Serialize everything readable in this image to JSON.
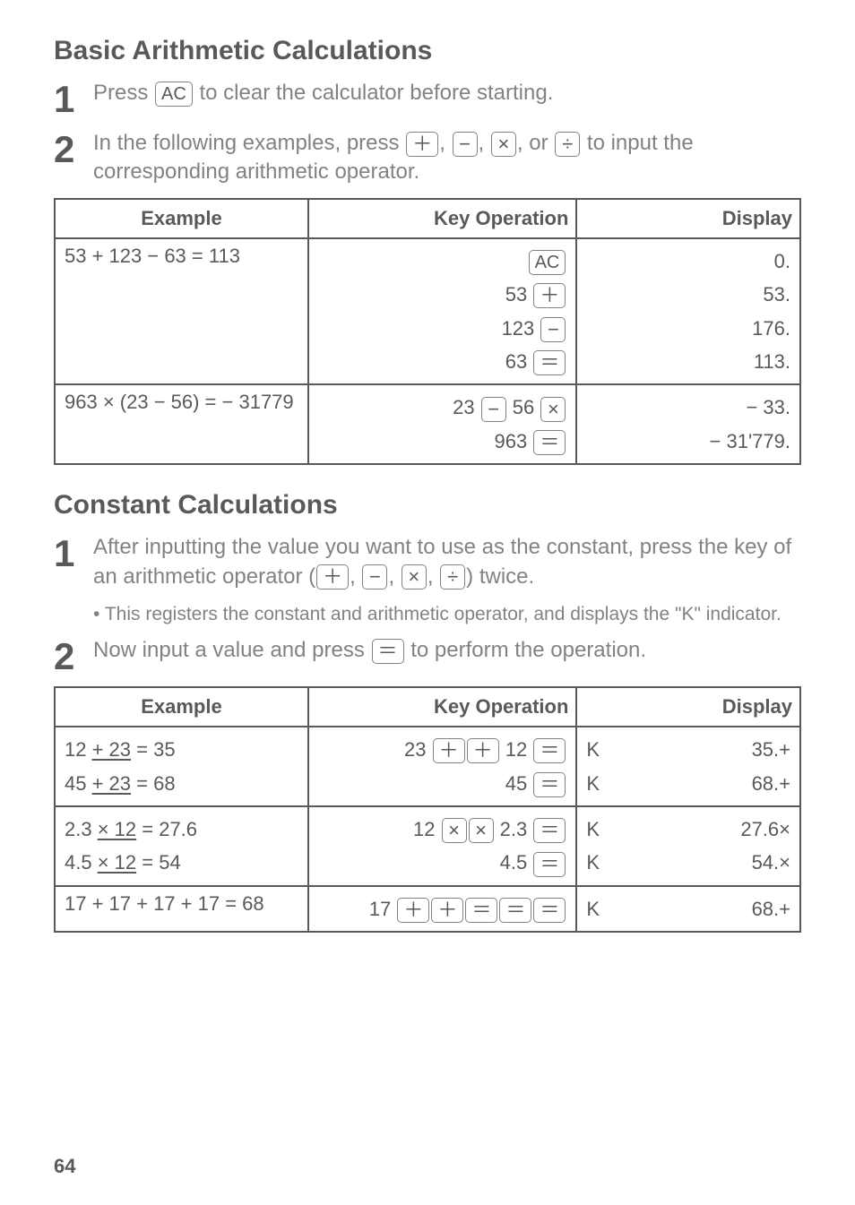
{
  "section1": {
    "title": "Basic Arithmetic Calculations",
    "step1_pre": "Press ",
    "step1_key": "AC",
    "step1_post": " to clear the calculator before starting.",
    "step2_pre": "In the following examples, press  ",
    "step2_mid": ", or ",
    "step2_post": " to input the corresponding arithmetic operator."
  },
  "table1": {
    "headers": [
      "Example",
      "Key Operation",
      "Display"
    ],
    "row1": {
      "example": "53 + 123 − 63 = 113",
      "ops": [
        {
          "pre": "",
          "key": "AC"
        },
        {
          "pre": "53 ",
          "key": "＋"
        },
        {
          "pre": "123 ",
          "key": "−"
        },
        {
          "pre": "63 ",
          "key": "＝"
        }
      ],
      "displays": [
        "0.",
        "53.",
        "176.",
        "113."
      ]
    },
    "row2": {
      "example": "963 × (23 − 56) = − 31779",
      "ops": [
        {
          "pre": "23 ",
          "key": "−",
          "mid": " 56 ",
          "key2": "×"
        },
        {
          "pre": "963 ",
          "key": "＝"
        }
      ],
      "displays": [
        "− 33.",
        "− 31'779."
      ]
    }
  },
  "section2": {
    "title": "Constant Calculations",
    "step1_pre": "After inputting the value you want to use as the constant, press the key of an arithmetic operator (",
    "step1_post": ") twice.",
    "bullet": "This registers the constant and arithmetic operator, and displays the \"K\" indicator.",
    "step2_pre": "Now input a value and press ",
    "step2_post": " to perform the operation."
  },
  "table2": {
    "headers": [
      "Example",
      "Key Operation",
      "Display"
    ],
    "r1a_ex_pre": "12 ",
    "r1a_ex_u": "+ 23",
    "r1a_ex_post": " = 35",
    "r1b_ex_pre": "45 ",
    "r1b_ex_u": "+ 23",
    "r1b_ex_post": " = 68",
    "r1_op1_pre": "23 ",
    "r1_op1_mid": " 12 ",
    "r1_op2_pre": "45 ",
    "r1_disp1_k": "K",
    "r1_disp1_v": "35.+",
    "r1_disp2_k": "K",
    "r1_disp2_v": "68.+",
    "r2a_ex_pre": "2.3 ",
    "r2a_ex_u": "× 12",
    "r2a_ex_post": " = 27.6",
    "r2b_ex_pre": "4.5 ",
    "r2b_ex_u": "× 12",
    "r2b_ex_post": " = 54",
    "r2_op1_pre": "12 ",
    "r2_op1_mid": " 2.3 ",
    "r2_op2_pre": "4.5 ",
    "r2_disp1_k": "K",
    "r2_disp1_v": "27.6×",
    "r2_disp2_k": "K",
    "r2_disp2_v": "54.×",
    "r3_ex": "17 + 17 + 17 + 17 = 68",
    "r3_op_pre": "17 ",
    "r3_disp_k": "K",
    "r3_disp_v": "68.+"
  },
  "keys": {
    "plus": "＋",
    "minus": "−",
    "mult": "×",
    "div": "÷",
    "eq": "＝",
    "ac": "AC"
  },
  "page": "64"
}
